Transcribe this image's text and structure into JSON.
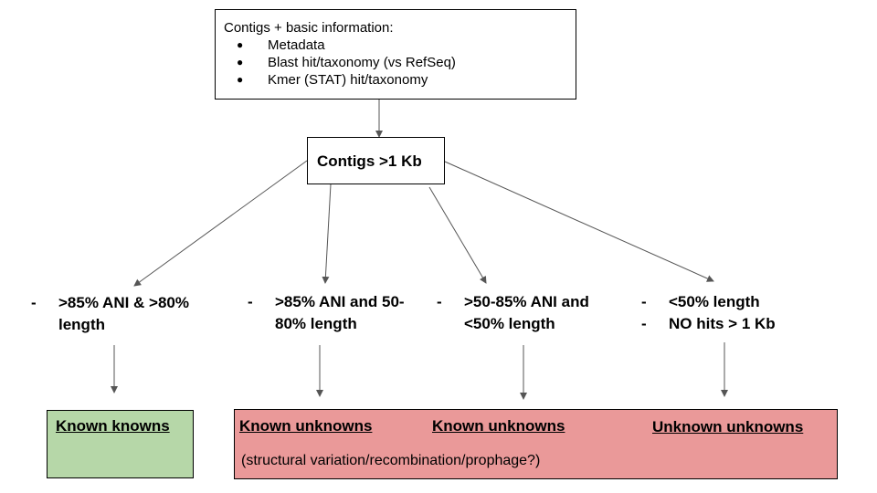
{
  "top_box": {
    "title": "Contigs + basic information:",
    "items": [
      "Metadata",
      "Blast hit/taxonomy (vs RefSeq)",
      "Kmer (STAT) hit/taxonomy"
    ]
  },
  "filter_box": {
    "label": "Contigs >1 Kb"
  },
  "criteria": [
    {
      "lines": [
        "-",
        ">85% ANI & >80% length"
      ]
    },
    {
      "lines": [
        "-",
        ">85% ANI and 50-80% length"
      ]
    },
    {
      "lines": [
        "-",
        ">50-85% ANI and <50% length"
      ]
    },
    {
      "lines": [
        "-",
        "<50% length",
        "-",
        "NO hits > 1 Kb"
      ]
    }
  ],
  "outcomes": {
    "known_knowns": "Known knowns",
    "known_unknowns_1": "Known unknowns",
    "known_unknowns_2": "Known unknowns",
    "unknown_unknowns": "Unknown unknowns",
    "note": "(structural variation/recombination/prophage?)"
  },
  "colors": {
    "known_knowns_fill": "#b6d7a8",
    "unknowns_fill": "#ea9999",
    "arrow": "#555555"
  }
}
